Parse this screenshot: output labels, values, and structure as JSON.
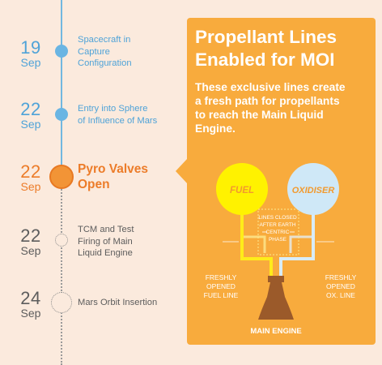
{
  "timeline": {
    "events": [
      {
        "day": "19",
        "month": "Sep",
        "label_lines": [
          "Spacecraft in",
          "Capture",
          "Configuration"
        ],
        "state": "past"
      },
      {
        "day": "22",
        "month": "Sep",
        "label_lines": [
          "Entry into Sphere",
          "of Influence of Mars"
        ],
        "state": "past"
      },
      {
        "day": "22",
        "month": "Sep",
        "label_lines": [
          "Pyro Valves",
          "Open"
        ],
        "state": "current"
      },
      {
        "day": "22",
        "month": "Sep",
        "label_lines": [
          "TCM and Test",
          "Firing of Main",
          "Liquid Engine"
        ],
        "state": "future"
      },
      {
        "day": "24",
        "month": "Sep",
        "label_lines": [
          "Mars Orbit Insertion"
        ],
        "state": "future"
      }
    ]
  },
  "panel": {
    "title_lines": [
      "Propellant Lines",
      "Enabled for MOI"
    ],
    "description_lines": [
      "These exclusive lines create",
      "a fresh path for propellants",
      "to reach the Main Liquid",
      "Engine."
    ],
    "diagram": {
      "fuel_label": "FUEL",
      "oxidiser_label": "OXIDISER",
      "closed_note_lines": [
        "LINES CLOSED",
        "AFTER EARTH",
        "CENTRIC",
        "PHASE"
      ],
      "fuel_line_lines": [
        "FRESHLY",
        "OPENED",
        "FUEL LINE"
      ],
      "ox_line_lines": [
        "FRESHLY",
        "OPENED",
        "OX. LINE"
      ],
      "engine_label": "MAIN ENGINE"
    }
  },
  "colors": {
    "background": "#fbeadd",
    "past": "#4fa3d8",
    "current": "#ec7c29",
    "future": "#5d5d5d",
    "panel": "#f8ab3d",
    "fuel_tank": "#fff200",
    "oxidiser_tank": "#cfe8f7",
    "engine": "#9b5a2a"
  }
}
